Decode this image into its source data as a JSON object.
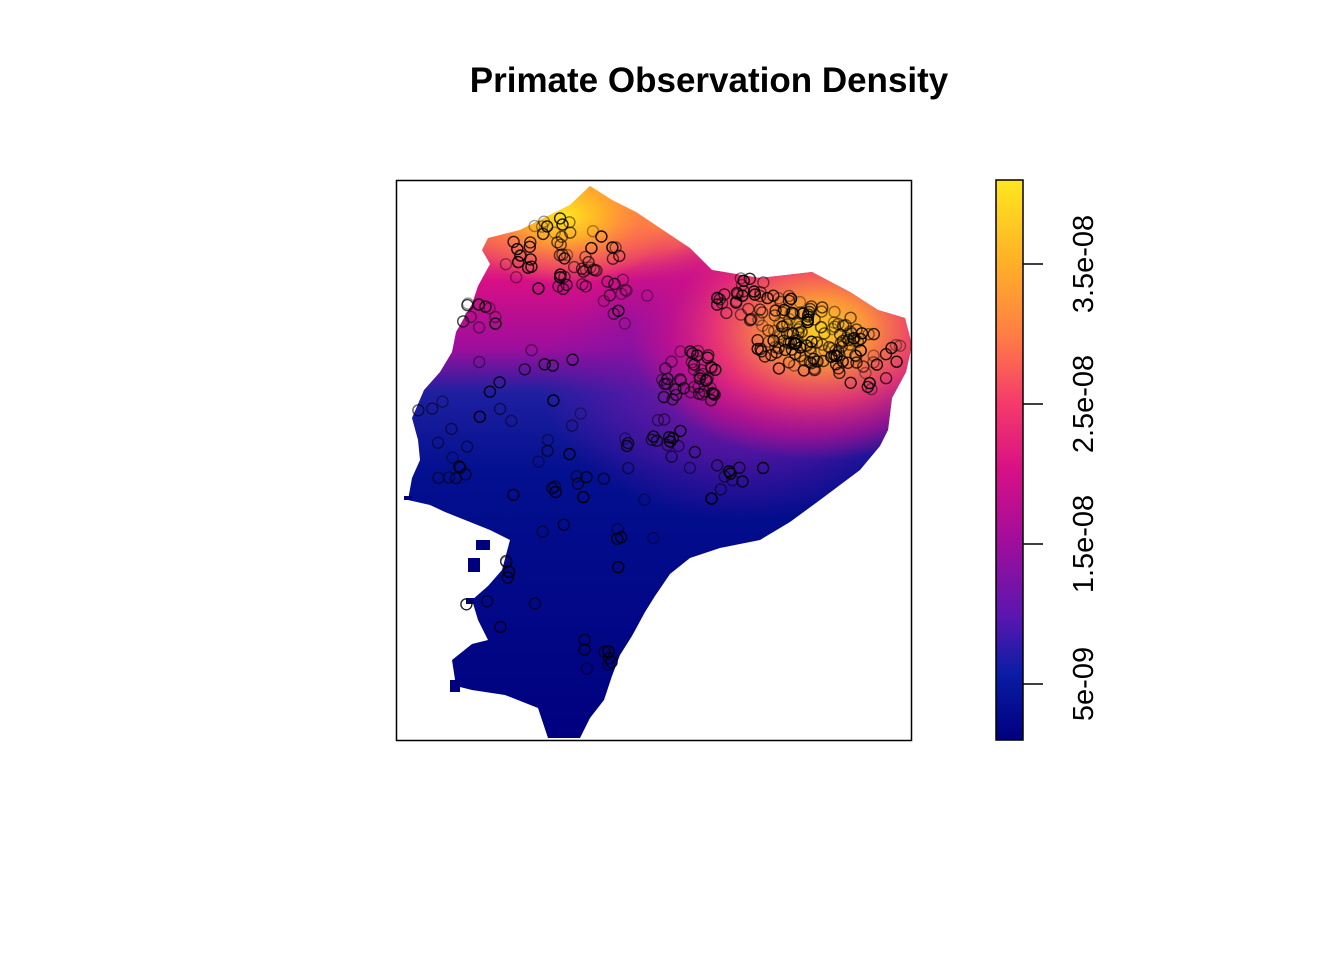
{
  "title": "Primate Observation Density",
  "map": {
    "type": "raster-density",
    "region_shape": "Ecuador",
    "palette": [
      "#00007F",
      "#0A1DA5",
      "#5A16B0",
      "#9E0E9C",
      "#D70F86",
      "#F53A6B",
      "#FF7C45",
      "#FFB326",
      "#FFE61F"
    ],
    "background": "#ffffff"
  },
  "legend": {
    "position": "right",
    "ticks": [
      "5e-09",
      "1.5e-08",
      "2.5e-08",
      "3.5e-08"
    ],
    "tick_values": [
      5e-09,
      1.5e-08,
      2.5e-08,
      3.5e-08
    ],
    "range": [
      1e-09,
      4.1e-08
    ]
  },
  "observations": {
    "marker": "open-circle",
    "color": "#000000"
  }
}
